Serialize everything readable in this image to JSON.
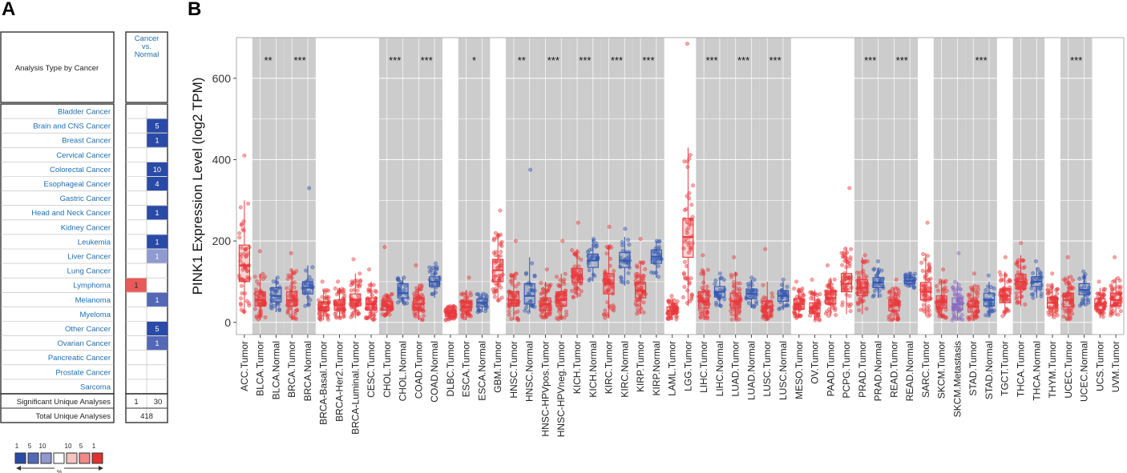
{
  "panel_a": {
    "letter": "A",
    "header_label": "Analysis Type by Cancer",
    "column_header_line1": "Cancer",
    "column_header_line2": "vs.",
    "column_header_line3": "Normal",
    "rows": [
      {
        "name": "Bladder Cancer",
        "over": "",
        "under": ""
      },
      {
        "name": "Brain and CNS Cancer",
        "over": "",
        "under": "5"
      },
      {
        "name": "Breast Cancer",
        "over": "",
        "under": "1"
      },
      {
        "name": "Cervical Cancer",
        "over": "",
        "under": ""
      },
      {
        "name": "Colorectal Cancer",
        "over": "",
        "under": "10"
      },
      {
        "name": "Esophageal Cancer",
        "over": "",
        "under": "4"
      },
      {
        "name": "Gastric Cancer",
        "over": "",
        "under": ""
      },
      {
        "name": "Head and Neck Cancer",
        "over": "",
        "under": "1"
      },
      {
        "name": "Kidney Cancer",
        "over": "",
        "under": ""
      },
      {
        "name": "Leukemia",
        "over": "",
        "under": "1"
      },
      {
        "name": "Liver Cancer",
        "over": "",
        "under": "1"
      },
      {
        "name": "Lung Cancer",
        "over": "",
        "under": ""
      },
      {
        "name": "Lymphoma",
        "over": "1",
        "under": ""
      },
      {
        "name": "Melanoma",
        "over": "",
        "under": "1"
      },
      {
        "name": "Myeloma",
        "over": "",
        "under": ""
      },
      {
        "name": "Other Cancer",
        "over": "",
        "under": "5"
      },
      {
        "name": "Ovarian Cancer",
        "over": "",
        "under": "1"
      },
      {
        "name": "Pancreatic Cancer",
        "over": "",
        "under": ""
      },
      {
        "name": "Prostate Cancer",
        "over": "",
        "under": ""
      },
      {
        "name": "Sarcoma",
        "over": "",
        "under": ""
      }
    ],
    "under_shades": {
      "Brain and CNS Cancer": 1,
      "Breast Cancer": 1,
      "Colorectal Cancer": 1,
      "Esophageal Cancer": 1,
      "Head and Neck Cancer": 1,
      "Leukemia": 1,
      "Liver Cancer": 3,
      "Melanoma": 2,
      "Other Cancer": 1,
      "Ovarian Cancer": 2
    },
    "significant_label": "Significant Unique Analyses",
    "significant_over": "1",
    "significant_under": "30",
    "total_label": "Total Unique Analyses",
    "total_value": "418",
    "legend_ranks": [
      "1",
      "5",
      "10",
      "10",
      "5",
      "1"
    ],
    "legend_unit": "%",
    "colors": {
      "link": "#1f6fb2",
      "under1": "#2a4aa8",
      "under2": "#5468b8",
      "under3": "#8f9ad0",
      "over": "#e85a5a",
      "legend_red1": "#e03030",
      "legend_red2": "#ee8a8a",
      "legend_red3": "#f6c2c2"
    }
  },
  "chart_data": {
    "letter": "B",
    "type": "box",
    "ylabel": "PINK1 Expression Level (log2 TPM)",
    "ylim": [
      -30,
      700
    ],
    "yticks": [
      0,
      200,
      400,
      600
    ],
    "grid": true,
    "colors": {
      "tumor": "#e8383b",
      "normal": "#3356b0",
      "metastasis": "#8a6bbf",
      "shade": "#cccccc"
    },
    "categories": [
      {
        "label": "ACC.Tumor",
        "kind": "tumor",
        "q1": 100,
        "median": 140,
        "q3": 190,
        "lo": 20,
        "hi": 300,
        "max": 410
      },
      {
        "label": "BLCA.Tumor",
        "kind": "tumor",
        "q1": 40,
        "median": 55,
        "q3": 75,
        "lo": 5,
        "hi": 120,
        "max": 175
      },
      {
        "label": "BLCA.Normal",
        "kind": "normal",
        "q1": 50,
        "median": 65,
        "q3": 85,
        "lo": 25,
        "hi": 110,
        "max": 110
      },
      {
        "label": "BRCA.Tumor",
        "kind": "tumor",
        "q1": 40,
        "median": 55,
        "q3": 75,
        "lo": 5,
        "hi": 130,
        "max": 170
      },
      {
        "label": "BRCA.Normal",
        "kind": "normal",
        "q1": 70,
        "median": 85,
        "q3": 100,
        "lo": 40,
        "hi": 140,
        "max": 330
      },
      {
        "label": "BRCA-Basal.Tumor",
        "kind": "tumor",
        "q1": 28,
        "median": 38,
        "q3": 50,
        "lo": 5,
        "hi": 80,
        "max": 100
      },
      {
        "label": "BRCA-Her2.Tumor",
        "kind": "tumor",
        "q1": 30,
        "median": 42,
        "q3": 55,
        "lo": 10,
        "hi": 85,
        "max": 100
      },
      {
        "label": "BRCA-Luminal.Tumor",
        "kind": "tumor",
        "q1": 40,
        "median": 55,
        "q3": 70,
        "lo": 10,
        "hi": 120,
        "max": 155
      },
      {
        "label": "CESC.Tumor",
        "kind": "tumor",
        "q1": 30,
        "median": 45,
        "q3": 60,
        "lo": 5,
        "hi": 100,
        "max": 130
      },
      {
        "label": "CHOL.Tumor",
        "kind": "tumor",
        "q1": 30,
        "median": 40,
        "q3": 52,
        "lo": 15,
        "hi": 70,
        "max": 185
      },
      {
        "label": "CHOL.Normal",
        "kind": "normal",
        "q1": 60,
        "median": 72,
        "q3": 95,
        "lo": 45,
        "hi": 110,
        "max": 110
      },
      {
        "label": "COAD.Tumor",
        "kind": "tumor",
        "q1": 30,
        "median": 45,
        "q3": 60,
        "lo": 5,
        "hi": 95,
        "max": 140
      },
      {
        "label": "COAD.Normal",
        "kind": "normal",
        "q1": 88,
        "median": 100,
        "q3": 112,
        "lo": 60,
        "hi": 140,
        "max": 145
      },
      {
        "label": "DLBC.Tumor",
        "kind": "tumor",
        "q1": 15,
        "median": 22,
        "q3": 30,
        "lo": 5,
        "hi": 40,
        "max": 40
      },
      {
        "label": "ESCA.Tumor",
        "kind": "tumor",
        "q1": 28,
        "median": 38,
        "q3": 52,
        "lo": 5,
        "hi": 80,
        "max": 110
      },
      {
        "label": "ESCA.Normal",
        "kind": "normal",
        "q1": 38,
        "median": 48,
        "q3": 58,
        "lo": 25,
        "hi": 70,
        "max": 70
      },
      {
        "label": "GBM.Tumor",
        "kind": "tumor",
        "q1": 100,
        "median": 128,
        "q3": 155,
        "lo": 50,
        "hi": 220,
        "max": 275
      },
      {
        "label": "HNSC.Tumor",
        "kind": "tumor",
        "q1": 40,
        "median": 55,
        "q3": 75,
        "lo": 5,
        "hi": 120,
        "max": 200
      },
      {
        "label": "HNSC.Normal",
        "kind": "normal",
        "q1": 45,
        "median": 65,
        "q3": 95,
        "lo": 25,
        "hi": 160,
        "max": 375
      },
      {
        "label": "HNSC-HPVpos.Tumor",
        "kind": "tumor",
        "q1": 30,
        "median": 45,
        "q3": 60,
        "lo": 10,
        "hi": 100,
        "max": 130
      },
      {
        "label": "HNSC-HPVneg.Tumor",
        "kind": "tumor",
        "q1": 40,
        "median": 55,
        "q3": 75,
        "lo": 5,
        "hi": 120,
        "max": 200
      },
      {
        "label": "KICH.Tumor",
        "kind": "tumor",
        "q1": 98,
        "median": 115,
        "q3": 132,
        "lo": 60,
        "hi": 180,
        "max": 245
      },
      {
        "label": "KICH.Normal",
        "kind": "normal",
        "q1": 135,
        "median": 152,
        "q3": 168,
        "lo": 100,
        "hi": 205,
        "max": 205
      },
      {
        "label": "KIRC.Tumor",
        "kind": "tumor",
        "q1": 70,
        "median": 95,
        "q3": 120,
        "lo": 10,
        "hi": 190,
        "max": 235
      },
      {
        "label": "KIRC.Normal",
        "kind": "normal",
        "q1": 135,
        "median": 152,
        "q3": 172,
        "lo": 90,
        "hi": 210,
        "max": 230
      },
      {
        "label": "KIRP.Tumor",
        "kind": "tumor",
        "q1": 60,
        "median": 78,
        "q3": 98,
        "lo": 20,
        "hi": 150,
        "max": 205
      },
      {
        "label": "KIRP.Normal",
        "kind": "normal",
        "q1": 145,
        "median": 162,
        "q3": 178,
        "lo": 110,
        "hi": 200,
        "max": 200
      },
      {
        "label": "LAML.Tumor",
        "kind": "tumor",
        "q1": 20,
        "median": 28,
        "q3": 38,
        "lo": 5,
        "hi": 55,
        "max": 65
      },
      {
        "label": "LGG.Tumor",
        "kind": "tumor",
        "q1": 160,
        "median": 210,
        "q3": 255,
        "lo": 40,
        "hi": 430,
        "max": 685
      },
      {
        "label": "LIHC.Tumor",
        "kind": "tumor",
        "q1": 35,
        "median": 52,
        "q3": 75,
        "lo": 5,
        "hi": 130,
        "max": 165
      },
      {
        "label": "LIHC.Normal",
        "kind": "normal",
        "q1": 62,
        "median": 75,
        "q3": 88,
        "lo": 40,
        "hi": 110,
        "max": 120
      },
      {
        "label": "LUAD.Tumor",
        "kind": "tumor",
        "q1": 35,
        "median": 52,
        "q3": 72,
        "lo": 5,
        "hi": 125,
        "max": 160
      },
      {
        "label": "LUAD.Normal",
        "kind": "normal",
        "q1": 58,
        "median": 70,
        "q3": 82,
        "lo": 35,
        "hi": 105,
        "max": 110
      },
      {
        "label": "LUSC.Tumor",
        "kind": "tumor",
        "q1": 25,
        "median": 38,
        "q3": 52,
        "lo": 5,
        "hi": 100,
        "max": 180
      },
      {
        "label": "LUSC.Normal",
        "kind": "normal",
        "q1": 52,
        "median": 65,
        "q3": 78,
        "lo": 30,
        "hi": 100,
        "max": 105
      },
      {
        "label": "MESO.Tumor",
        "kind": "tumor",
        "q1": 32,
        "median": 45,
        "q3": 58,
        "lo": 10,
        "hi": 85,
        "max": 100
      },
      {
        "label": "OV.Tumor",
        "kind": "tumor",
        "q1": 22,
        "median": 35,
        "q3": 48,
        "lo": 5,
        "hi": 80,
        "max": 105
      },
      {
        "label": "PAAD.Tumor",
        "kind": "tumor",
        "q1": 45,
        "median": 60,
        "q3": 78,
        "lo": 15,
        "hi": 110,
        "max": 140
      },
      {
        "label": "PCPG.Tumor",
        "kind": "tumor",
        "q1": 75,
        "median": 95,
        "q3": 120,
        "lo": 20,
        "hi": 185,
        "max": 330
      },
      {
        "label": "PRAD.Tumor",
        "kind": "tumor",
        "q1": 65,
        "median": 85,
        "q3": 105,
        "lo": 20,
        "hi": 160,
        "max": 165
      },
      {
        "label": "PRAD.Normal",
        "kind": "normal",
        "q1": 85,
        "median": 98,
        "q3": 110,
        "lo": 60,
        "hi": 135,
        "max": 150
      },
      {
        "label": "READ.Tumor",
        "kind": "tumor",
        "q1": 28,
        "median": 42,
        "q3": 55,
        "lo": 5,
        "hi": 85,
        "max": 105
      },
      {
        "label": "READ.Normal",
        "kind": "normal",
        "q1": 95,
        "median": 102,
        "q3": 110,
        "lo": 85,
        "hi": 120,
        "max": 120
      },
      {
        "label": "SARC.Tumor",
        "kind": "tumor",
        "q1": 55,
        "median": 75,
        "q3": 98,
        "lo": 15,
        "hi": 170,
        "max": 245
      },
      {
        "label": "SKCM.Tumor",
        "kind": "tumor",
        "q1": 35,
        "median": 50,
        "q3": 65,
        "lo": 10,
        "hi": 105,
        "max": 130
      },
      {
        "label": "SKCM.Metastasis",
        "kind": "metastasis",
        "q1": 30,
        "median": 45,
        "q3": 60,
        "lo": 5,
        "hi": 100,
        "max": 170
      },
      {
        "label": "STAD.Tumor",
        "kind": "tumor",
        "q1": 25,
        "median": 38,
        "q3": 52,
        "lo": 5,
        "hi": 90,
        "max": 120
      },
      {
        "label": "STAD.Normal",
        "kind": "normal",
        "q1": 40,
        "median": 55,
        "q3": 72,
        "lo": 15,
        "hi": 100,
        "max": 115
      },
      {
        "label": "TGCT.Tumor",
        "kind": "tumor",
        "q1": 48,
        "median": 65,
        "q3": 82,
        "lo": 15,
        "hi": 125,
        "max": 160
      },
      {
        "label": "THCA.Tumor",
        "kind": "tumor",
        "q1": 82,
        "median": 100,
        "q3": 118,
        "lo": 40,
        "hi": 165,
        "max": 195
      },
      {
        "label": "THCA.Normal",
        "kind": "normal",
        "q1": 88,
        "median": 100,
        "q3": 112,
        "lo": 60,
        "hi": 135,
        "max": 150
      },
      {
        "label": "THYM.Tumor",
        "kind": "tumor",
        "q1": 35,
        "median": 48,
        "q3": 62,
        "lo": 10,
        "hi": 95,
        "max": 120
      },
      {
        "label": "UCEC.Tumor",
        "kind": "tumor",
        "q1": 38,
        "median": 55,
        "q3": 72,
        "lo": 5,
        "hi": 115,
        "max": 160
      },
      {
        "label": "UCEC.Normal",
        "kind": "normal",
        "q1": 68,
        "median": 80,
        "q3": 95,
        "lo": 40,
        "hi": 120,
        "max": 125
      },
      {
        "label": "UCS.Tumor",
        "kind": "tumor",
        "q1": 32,
        "median": 45,
        "q3": 58,
        "lo": 10,
        "hi": 85,
        "max": 100
      },
      {
        "label": "UVM.Tumor",
        "kind": "tumor",
        "q1": 40,
        "median": 55,
        "q3": 72,
        "lo": 15,
        "hi": 110,
        "max": 160
      }
    ],
    "shaded_groups": [
      {
        "from": 1,
        "to": 2,
        "significance": "**"
      },
      {
        "from": 3,
        "to": 4,
        "significance": "***"
      },
      {
        "from": 9,
        "to": 10,
        "significance": "***"
      },
      {
        "from": 11,
        "to": 12,
        "significance": "***"
      },
      {
        "from": 14,
        "to": 15,
        "significance": "*"
      },
      {
        "from": 17,
        "to": 18,
        "significance": "**"
      },
      {
        "from": 19,
        "to": 20,
        "significance": "***"
      },
      {
        "from": 21,
        "to": 22,
        "significance": "***"
      },
      {
        "from": 23,
        "to": 24,
        "significance": "***"
      },
      {
        "from": 25,
        "to": 26,
        "significance": "***"
      },
      {
        "from": 29,
        "to": 30,
        "significance": "***"
      },
      {
        "from": 31,
        "to": 32,
        "significance": "***"
      },
      {
        "from": 33,
        "to": 34,
        "significance": "***"
      },
      {
        "from": 39,
        "to": 40,
        "significance": "***"
      },
      {
        "from": 41,
        "to": 42,
        "significance": "***"
      },
      {
        "from": 44,
        "to": 45,
        "significance": ""
      },
      {
        "from": 46,
        "to": 47,
        "significance": "***"
      },
      {
        "from": 49,
        "to": 50,
        "significance": ""
      },
      {
        "from": 52,
        "to": 53,
        "significance": "***"
      }
    ]
  }
}
